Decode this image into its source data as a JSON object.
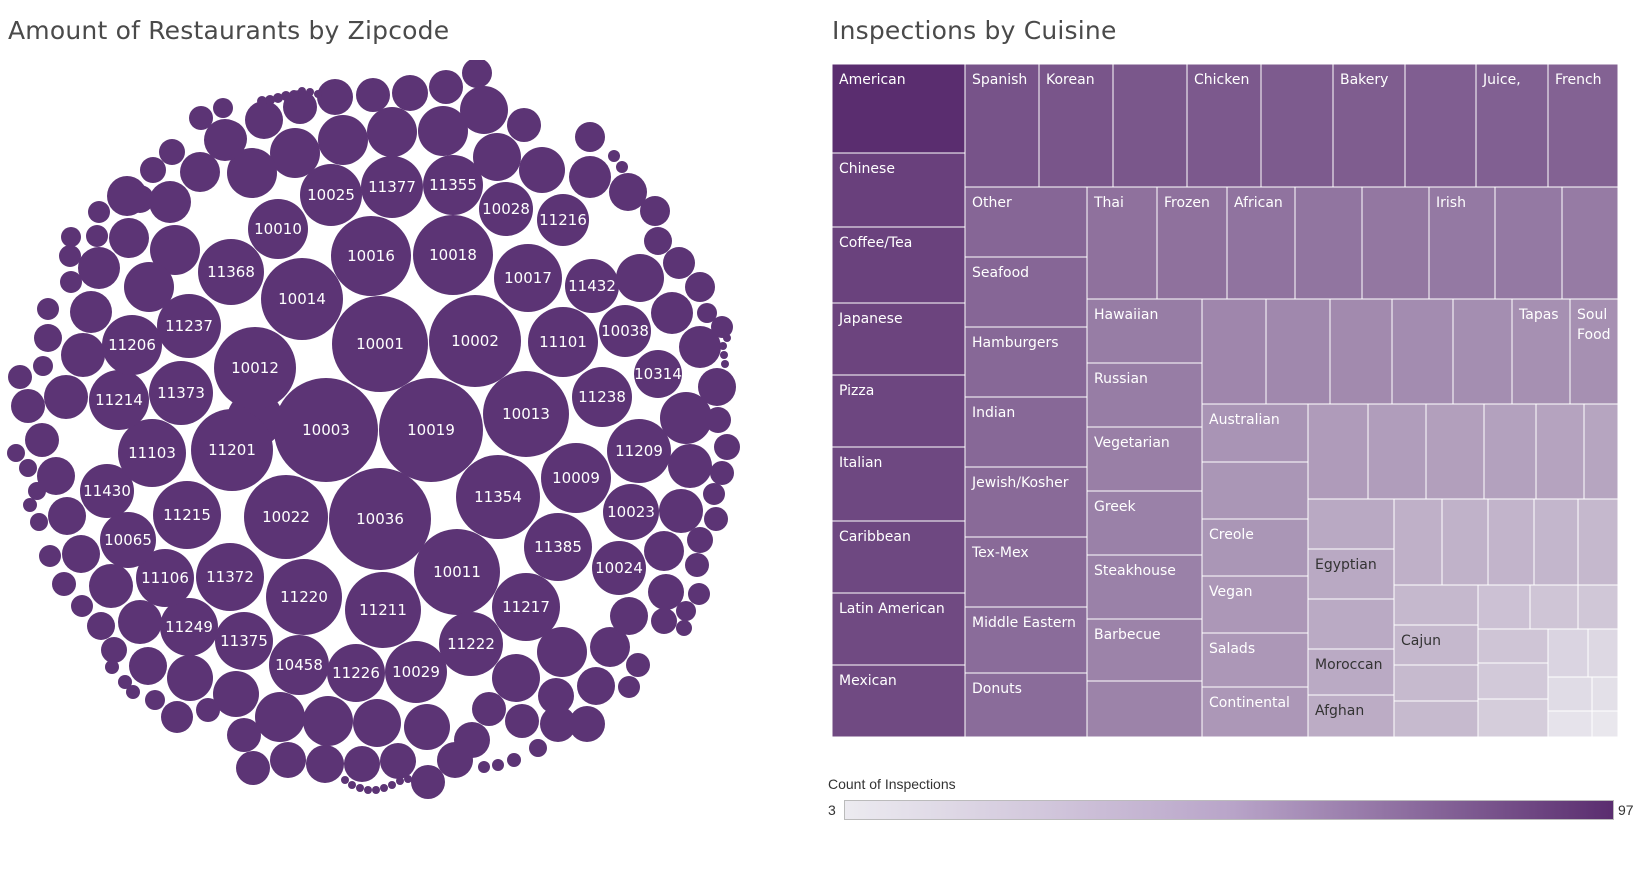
{
  "colors": {
    "bubble": "#5c3475",
    "low": "#ecebf0",
    "high": "#5a2d6f",
    "border": "#ffffff"
  },
  "chart_data": [
    {
      "type": "packed-bubble",
      "title": "Amount of Restaurants by Zipcode",
      "labeled_zipcodes": [
        "10003",
        "10019",
        "10036",
        "10001",
        "10002",
        "10022",
        "10013",
        "10011",
        "11354",
        "10012",
        "11211",
        "11201",
        "11220",
        "10014",
        "10016",
        "10018",
        "10009",
        "11385",
        "11217",
        "11215",
        "11372",
        "10017",
        "11101",
        "11222",
        "10029",
        "11226",
        "10458",
        "11375",
        "11249",
        "11106",
        "10065",
        "11430",
        "11103",
        "11214",
        "11206",
        "11237",
        "11373",
        "11368",
        "10010",
        "10025",
        "11377",
        "11355",
        "10028",
        "11216",
        "11432",
        "10038",
        "10314",
        "11238",
        "11209",
        "10023",
        "10024"
      ],
      "unlabeled_bubbles": "many smaller zipcodes (unlabeled)"
    },
    {
      "type": "treemap",
      "title": "Inspections by Cuisine",
      "measure": "Count of Inspections",
      "color_range": [
        3,
        97
      ],
      "labels": [
        "American",
        "Chinese",
        "Coffee/Tea",
        "Japanese",
        "Pizza",
        "Italian",
        "Caribbean",
        "Latin American",
        "Mexican",
        "Spanish",
        "Korean",
        "Chicken",
        "Bakery",
        "Juice,",
        "French",
        "Other",
        "Seafood",
        "Hamburgers",
        "Indian",
        "Jewish/Kosher",
        "Tex-Mex",
        "Middle Eastern",
        "Donuts",
        "Thai",
        "Frozen",
        "African",
        "Irish",
        "Hawaiian",
        "Russian",
        "Vegetarian",
        "Greek",
        "Steakhouse",
        "Barbecue",
        "Tapas",
        "Soul Food",
        "Australian",
        "Creole",
        "Vegan",
        "Salads",
        "Continental",
        "Egyptian",
        "Moroccan",
        "Afghan",
        "Cajun"
      ]
    }
  ],
  "legend": {
    "title": "Count of Inspections",
    "min": "3",
    "max": "97"
  }
}
